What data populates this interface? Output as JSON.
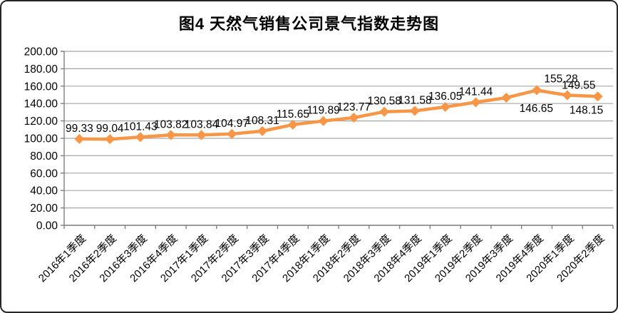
{
  "chart": {
    "title": "图4 天然气销售公司景气指数走势图"
  },
  "chart_data": {
    "type": "line",
    "title": "图4 天然气销售公司景气指数走势图",
    "categories": [
      "2016年1季度",
      "2016年2季度",
      "2016年3季度",
      "2016年4季度",
      "2017年1季度",
      "2017年2季度",
      "2017年3季度",
      "2017年4季度",
      "2018年1季度",
      "2018年2季度",
      "2018年3季度",
      "2018年4季度",
      "2019年1季度",
      "2019年2季度",
      "2019年3季度",
      "2019年4季度",
      "2020年1季度",
      "2020年2季度"
    ],
    "values": [
      99.33,
      99.04,
      101.43,
      103.82,
      103.84,
      104.97,
      108.31,
      115.65,
      119.89,
      123.77,
      130.58,
      131.58,
      136.05,
      141.44,
      146.65,
      155.28,
      149.55,
      148.15
    ],
    "data_labels": [
      "99.33",
      "99.04",
      "101.43",
      "103.82",
      "103.84",
      "104.97",
      "108.31",
      "115.65",
      "119.89",
      "123.77",
      "130.58",
      "131.58",
      "136.05",
      "141.44",
      "146.65",
      "155.28",
      "149.55",
      "148.15"
    ],
    "series_color": "#F79646",
    "grid_color": "#A6A6A6",
    "axis_color": "#808080",
    "label_color": "#000000",
    "marker": "diamond",
    "ylim": [
      0,
      200
    ],
    "y_step": 20,
    "y_tick_labels": [
      "200.00",
      "180.00",
      "160.00",
      "140.00",
      "120.00",
      "100.00",
      "80.00",
      "60.00",
      "40.00",
      "20.00",
      "0.00"
    ],
    "grid": true,
    "legend": "none",
    "data_labels_visible": true,
    "x_labels_rotation_deg": 45
  }
}
